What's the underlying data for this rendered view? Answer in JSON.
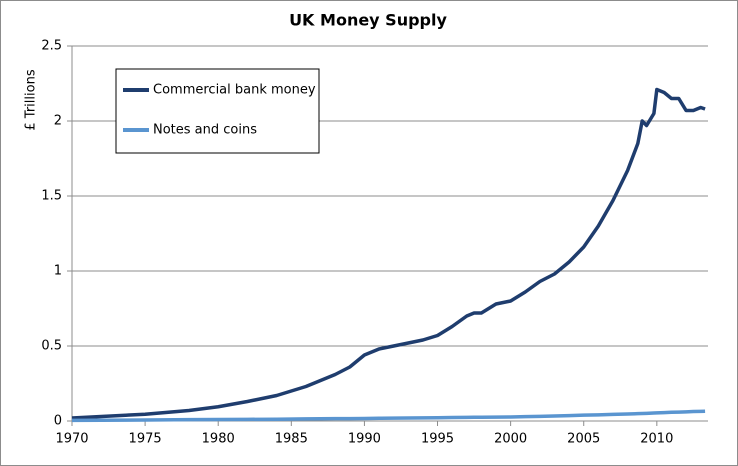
{
  "chart_data": {
    "type": "line",
    "title": "UK Money Supply",
    "y_label": "£ Trillions",
    "x": [
      1970,
      1972,
      1975,
      1978,
      1980,
      1982,
      1984,
      1986,
      1988,
      1989,
      1990,
      1991,
      1992,
      1993,
      1994,
      1995,
      1996,
      1997,
      1997.5,
      1998,
      1999,
      2000,
      2001,
      2002,
      2003,
      2004,
      2005,
      2006,
      2007,
      2008,
      2008.7,
      2009,
      2009.3,
      2009.8,
      2010,
      2010.5,
      2011,
      2011.5,
      2012,
      2012.5,
      2013,
      2013.3
    ],
    "series": [
      {
        "name": "Commercial bank money",
        "color": "#1f3d6e",
        "values": [
          0.02,
          0.03,
          0.045,
          0.07,
          0.095,
          0.13,
          0.17,
          0.23,
          0.31,
          0.36,
          0.44,
          0.48,
          0.5,
          0.52,
          0.54,
          0.57,
          0.63,
          0.7,
          0.72,
          0.72,
          0.78,
          0.8,
          0.86,
          0.93,
          0.98,
          1.06,
          1.16,
          1.3,
          1.47,
          1.67,
          1.85,
          2.0,
          1.97,
          2.05,
          2.21,
          2.19,
          2.15,
          2.15,
          2.07,
          2.07,
          2.09,
          2.08
        ]
      },
      {
        "name": "Notes and coins",
        "color": "#5a95d0",
        "values": [
          0.004,
          0.005,
          0.007,
          0.009,
          0.01,
          0.011,
          0.012,
          0.014,
          0.016,
          0.016,
          0.017,
          0.018,
          0.019,
          0.02,
          0.021,
          0.022,
          0.023,
          0.024,
          0.025,
          0.025,
          0.026,
          0.027,
          0.029,
          0.031,
          0.033,
          0.036,
          0.039,
          0.041,
          0.044,
          0.047,
          0.049,
          0.05,
          0.051,
          0.053,
          0.054,
          0.056,
          0.058,
          0.059,
          0.061,
          0.063,
          0.064,
          0.065
        ]
      }
    ],
    "xlim": [
      1970,
      2013.5
    ],
    "xticks": [
      1970,
      1975,
      1980,
      1985,
      1990,
      1995,
      2000,
      2005,
      2010
    ],
    "ylim": [
      0,
      2.5
    ],
    "yticks": [
      0,
      0.5,
      1,
      1.5,
      2,
      2.5
    ],
    "grid": true,
    "legend": "upper left"
  }
}
